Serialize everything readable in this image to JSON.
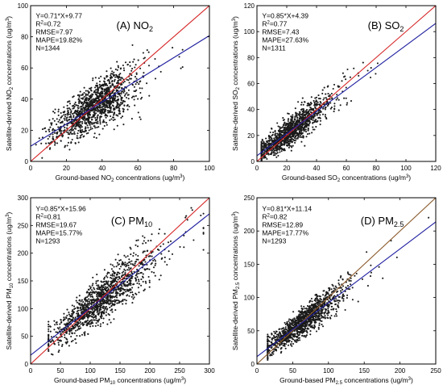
{
  "chart_data": [
    {
      "type": "scatter",
      "panel_label_main": "(A) NO",
      "panel_label_sub": "2",
      "xlabel_pre": "Ground-based NO",
      "xlabel_sub": "2",
      "xlabel_post": " concentrations (ug/m",
      "xlabel_sup": "3",
      "xlabel_end": ")",
      "ylabel_pre": "Satellite-derived NO",
      "ylabel_sub": "2",
      "ylabel_post": " concentrations (ug/m",
      "ylabel_sup": "3",
      "ylabel_end": ")",
      "xlim": [
        0,
        100
      ],
      "ylim": [
        0,
        100
      ],
      "xticks": [
        0,
        20,
        40,
        60,
        80,
        100
      ],
      "yticks": [
        0,
        20,
        40,
        60,
        80,
        100
      ],
      "stats": {
        "equation": "Y=0.71*X+9.77",
        "r2_pre": "R",
        "r2_sup": "2",
        "r2_post": "=0.72",
        "rmse": "RMSE=7.97",
        "mape": "MAPE=19.82%",
        "n": "N=1344"
      },
      "fit_line": {
        "slope": 0.71,
        "intercept": 9.77,
        "color": "#1f1fa0"
      },
      "identity_line": {
        "slope": 1,
        "intercept": 0,
        "color": "#d62728"
      },
      "cloud": {
        "n_points": 1344,
        "x_center": 35,
        "x_spread": 11,
        "x_min": 3,
        "x_max": 85,
        "noise": 7.5,
        "seed": 11
      }
    },
    {
      "type": "scatter",
      "panel_label_main": "(B) SO",
      "panel_label_sub": "2",
      "xlabel_pre": "Ground-based SO",
      "xlabel_sub": "2",
      "xlabel_post": " concentrations (ug/m",
      "xlabel_sup": "3",
      "xlabel_end": ")",
      "ylabel_pre": "Satellite-derived SO",
      "ylabel_sub": "2",
      "ylabel_post": " concentrations (ug/m",
      "ylabel_sup": "3",
      "ylabel_end": ")",
      "xlim": [
        0,
        120
      ],
      "ylim": [
        0,
        120
      ],
      "xticks": [
        0,
        20,
        40,
        60,
        80,
        100,
        120
      ],
      "yticks": [
        0,
        20,
        40,
        60,
        80,
        100,
        120
      ],
      "stats": {
        "equation": "Y=0.85*X+4.39",
        "r2_pre": "R",
        "r2_sup": "2",
        "r2_post": "=0.77",
        "rmse": "RMSE=7.43",
        "mape": "MAPE=27.63%",
        "n": "N=1311"
      },
      "fit_line": {
        "slope": 0.85,
        "intercept": 4.39,
        "color": "#1f1fa0"
      },
      "identity_line": {
        "slope": 1,
        "intercept": 0,
        "color": "#d62728"
      },
      "cloud": {
        "n_points": 1311,
        "x_center": 22,
        "x_spread": 13,
        "x_min": 3,
        "x_max": 110,
        "noise": 7,
        "seed": 23
      }
    },
    {
      "type": "scatter",
      "panel_label_main": "(C) PM",
      "panel_label_sub": "10",
      "xlabel_pre": "Ground-based PM",
      "xlabel_sub": "10",
      "xlabel_post": " concentrations (ug/m",
      "xlabel_sup": "3",
      "xlabel_end": ")",
      "ylabel_pre": "Satellite-derived PM",
      "ylabel_sub": "10",
      "ylabel_post": " concentrations (ug/m",
      "ylabel_sup": "3",
      "ylabel_end": ")",
      "xlim": [
        0,
        300
      ],
      "ylim": [
        0,
        300
      ],
      "xticks": [
        0,
        50,
        100,
        150,
        200,
        250,
        300
      ],
      "yticks": [
        0,
        50,
        100,
        150,
        200,
        250,
        300
      ],
      "stats": {
        "equation": "Y=0.85*X+15.96",
        "r2_pre": "R",
        "r2_sup": "2",
        "r2_post": "=0.81",
        "rmse": "RMSE=19.67",
        "mape": "MAPE=15.77%",
        "n": "N=1293"
      },
      "fit_line": {
        "slope": 0.85,
        "intercept": 15.96,
        "color": "#1f1fa0"
      },
      "identity_line": {
        "slope": 1,
        "intercept": 0,
        "color": "#d62728"
      },
      "cloud": {
        "n_points": 1293,
        "x_center": 115,
        "x_spread": 42,
        "x_min": 30,
        "x_max": 290,
        "noise": 19,
        "seed": 37
      }
    },
    {
      "type": "scatter",
      "panel_label_main": "(D) PM",
      "panel_label_sub": "2.5",
      "xlabel_pre": "Ground-based PM",
      "xlabel_sub": "2.5",
      "xlabel_post": " concentrations (ug/m",
      "xlabel_sup": "3",
      "xlabel_end": ")",
      "ylabel_pre": "Satellite-derived PM",
      "ylabel_sub": "2.5",
      "ylabel_post": " concentrations (ug/m",
      "ylabel_sup": "3",
      "ylabel_end": ")",
      "xlim": [
        0,
        250
      ],
      "ylim": [
        0,
        250
      ],
      "xticks": [
        0,
        50,
        100,
        150,
        200,
        250
      ],
      "yticks": [
        0,
        50,
        100,
        150,
        200,
        250
      ],
      "stats": {
        "equation": "Y=0.81*X+11.14",
        "r2_pre": "R",
        "r2_sup": "2",
        "r2_post": "=0.82",
        "rmse": "RMSE=12.89",
        "mape": "MAPE=17.77%",
        "n": "N=1293"
      },
      "fit_line": {
        "slope": 0.81,
        "intercept": 11.14,
        "color": "#1f1fa0"
      },
      "identity_line": {
        "slope": 1,
        "intercept": 0,
        "color": "#8b5a2b"
      },
      "cloud": {
        "n_points": 1293,
        "x_center": 62,
        "x_spread": 27,
        "x_min": 15,
        "x_max": 240,
        "noise": 12,
        "seed": 53
      }
    }
  ],
  "colors": {
    "points": "#1a1a1a",
    "axis": "#000000",
    "background": "#ffffff"
  }
}
